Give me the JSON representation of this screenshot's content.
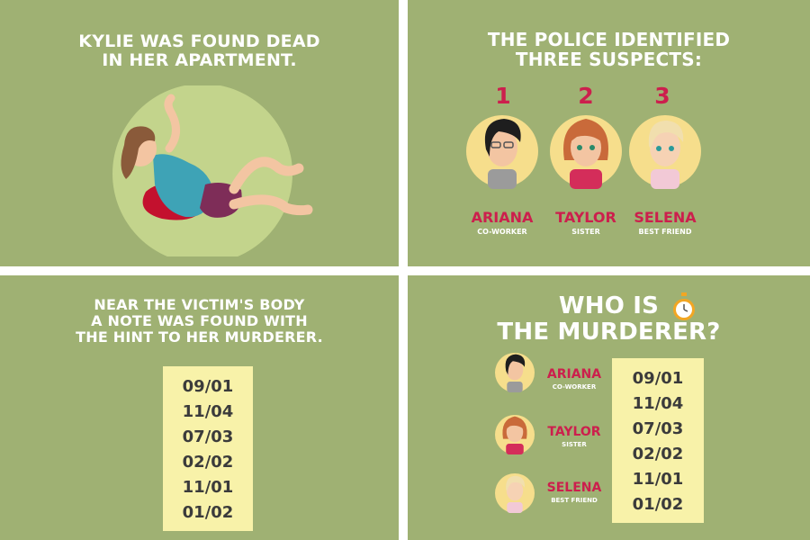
{
  "panel1": {
    "headline": [
      "KYLIE WAS FOUND DEAD",
      "IN HER APARTMENT."
    ]
  },
  "panel2": {
    "headline": [
      "THE POLICE IDENTIFIED",
      "THREE SUSPECTS:"
    ],
    "suspects": [
      {
        "number": "1",
        "name": "ARIANA",
        "role": "CO-WORKER"
      },
      {
        "number": "2",
        "name": "TAYLOR",
        "role": "SISTER"
      },
      {
        "number": "3",
        "name": "SELENA",
        "role": "BEST FRIEND"
      }
    ]
  },
  "panel3": {
    "headline": [
      "NEAR THE VICTIM'S BODY",
      "A NOTE WAS FOUND WITH",
      "THE HINT TO HER MURDERER."
    ],
    "note_lines": [
      "09/01",
      "11/04",
      "07/03",
      "02/02",
      "11/01",
      "01/02"
    ]
  },
  "panel4": {
    "headline": [
      "WHO IS",
      "THE MURDERER?"
    ],
    "suspects": [
      {
        "name": "ARIANA",
        "role": "CO-WORKER"
      },
      {
        "name": "TAYLOR",
        "role": "SISTER"
      },
      {
        "name": "SELENA",
        "role": "BEST FRIEND"
      }
    ],
    "note_lines": [
      "09/01",
      "11/04",
      "07/03",
      "02/02",
      "11/01",
      "01/02"
    ]
  },
  "colors": {
    "panel_bg": "#9fb173",
    "accent_red": "#cc1f4d",
    "avatar_bg": "#f6de8c",
    "note_bg": "#f8f2a9"
  },
  "icons": [
    "victim-illustration",
    "ariana-avatar",
    "taylor-avatar",
    "selena-avatar",
    "stopwatch-icon"
  ]
}
